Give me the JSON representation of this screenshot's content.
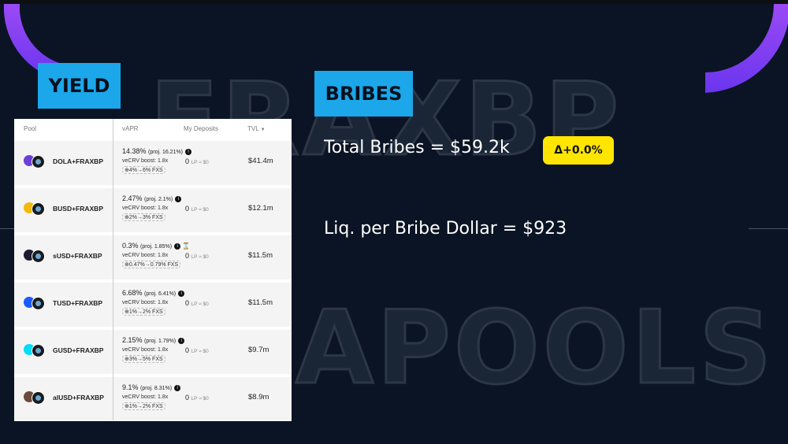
{
  "colors": {
    "background": "#0a1424",
    "accent_purple": "#7b3ff2",
    "tag_blue": "#1ba7ea",
    "badge_yellow": "#ffe500"
  },
  "watermarks": [
    "FRAXBP",
    "APOOLS"
  ],
  "yield": {
    "tag": "YIELD",
    "columns": {
      "pool": "Pool",
      "vapr": "vAPR",
      "deposits": "My Deposits",
      "tvl": "TVL",
      "sort_icon": "caret-down-icon"
    },
    "rows": [
      {
        "pool": "DOLA+FRAXBP",
        "coin_color": "#6b3fd8",
        "apr": "14.38%",
        "proj": "(proj. 16.21%)",
        "boost": "veCRV boost: 1.8x",
        "lp": "0",
        "lp_value": "LP ≈ $0",
        "fxs": "⊕4%→6% FXS",
        "tvl": "$41.4m",
        "hourglass": ""
      },
      {
        "pool": "BUSD+FRAXBP",
        "coin_color": "#f0b90b",
        "apr": "2.47%",
        "proj": "(proj. 2.1%)",
        "boost": "veCRV boost: 1.8x",
        "lp": "0",
        "lp_value": "LP ≈ $0",
        "fxs": "⊕2%→3% FXS",
        "tvl": "$12.1m",
        "hourglass": ""
      },
      {
        "pool": "sUSD+FRAXBP",
        "coin_color": "#1e1a31",
        "apr": "0.3%",
        "proj": "(proj. 1.85%)",
        "boost": "veCRV boost: 1.8x",
        "lp": "0",
        "lp_value": "LP ≈ $0",
        "fxs": "⊕0.47%→0.79% FXS",
        "tvl": "$11.5m",
        "hourglass": "⌛"
      },
      {
        "pool": "TUSD+FRAXBP",
        "coin_color": "#1a5aff",
        "apr": "6.68%",
        "proj": "(proj. 6.41%)",
        "boost": "veCRV boost: 1.8x",
        "lp": "0",
        "lp_value": "LP ≈ $0",
        "fxs": "⊕1%→2% FXS",
        "tvl": "$11.5m",
        "hourglass": ""
      },
      {
        "pool": "GUSD+FRAXBP",
        "coin_color": "#00dcfa",
        "apr": "2.15%",
        "proj": "(proj. 1.79%)",
        "boost": "veCRV boost: 1.8x",
        "lp": "0",
        "lp_value": "LP ≈ $0",
        "fxs": "⊕3%→5% FXS",
        "tvl": "$9.7m",
        "hourglass": ""
      },
      {
        "pool": "alUSD+FRAXBP",
        "coin_color": "#6b4a3a",
        "apr": "9.1%",
        "proj": "(proj. 8.31%)",
        "boost": "veCRV boost: 1.8x",
        "lp": "0",
        "lp_value": "LP ≈ $0",
        "fxs": "⊕1%→2% FXS",
        "tvl": "$8.9m",
        "hourglass": ""
      }
    ]
  },
  "bribes": {
    "tag": "BRIBES",
    "total": "Total Bribes = $59.2k",
    "delta": "Δ+0.0%",
    "liq_per_dollar": "Liq. per Bribe Dollar = $923"
  }
}
